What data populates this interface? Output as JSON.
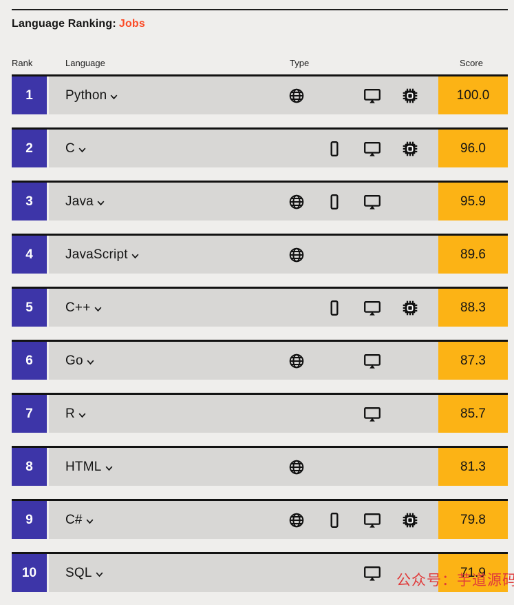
{
  "header": {
    "title_prefix": "Language Ranking:",
    "title_category": "Jobs"
  },
  "columns": [
    "Rank",
    "Language",
    "Type",
    "Score"
  ],
  "type_slot_order": [
    "web",
    "mobile",
    "desktop",
    "embedded"
  ],
  "icon_names": {
    "web": "globe-icon",
    "mobile": "smartphone-icon",
    "desktop": "monitor-icon",
    "embedded": "chip-icon"
  },
  "rows": [
    {
      "rank": "1",
      "language": "Python",
      "types": [
        "web",
        "desktop",
        "embedded"
      ],
      "score": "100.0"
    },
    {
      "rank": "2",
      "language": "C",
      "types": [
        "mobile",
        "desktop",
        "embedded"
      ],
      "score": "96.0"
    },
    {
      "rank": "3",
      "language": "Java",
      "types": [
        "web",
        "mobile",
        "desktop"
      ],
      "score": "95.9"
    },
    {
      "rank": "4",
      "language": "JavaScript",
      "types": [
        "web"
      ],
      "score": "89.6"
    },
    {
      "rank": "5",
      "language": "C++",
      "types": [
        "mobile",
        "desktop",
        "embedded"
      ],
      "score": "88.3"
    },
    {
      "rank": "6",
      "language": "Go",
      "types": [
        "web",
        "desktop"
      ],
      "score": "87.3"
    },
    {
      "rank": "7",
      "language": "R",
      "types": [
        "desktop"
      ],
      "score": "85.7"
    },
    {
      "rank": "8",
      "language": "HTML",
      "types": [
        "web"
      ],
      "score": "81.3"
    },
    {
      "rank": "9",
      "language": "C#",
      "types": [
        "web",
        "mobile",
        "desktop",
        "embedded"
      ],
      "score": "79.8"
    },
    {
      "rank": "10",
      "language": "SQL",
      "types": [
        "desktop"
      ],
      "score": "71.9"
    }
  ],
  "watermark": {
    "text": "公众号：芋道源码"
  },
  "colors": {
    "background": "#efeeec",
    "row_gray": "#d8d7d5",
    "rank_blue": "#3d35a8",
    "score_orange": "#fcb315",
    "accent_red": "#fb4b27",
    "watermark_red": "#e03a3a",
    "text_dark": "#141414"
  }
}
